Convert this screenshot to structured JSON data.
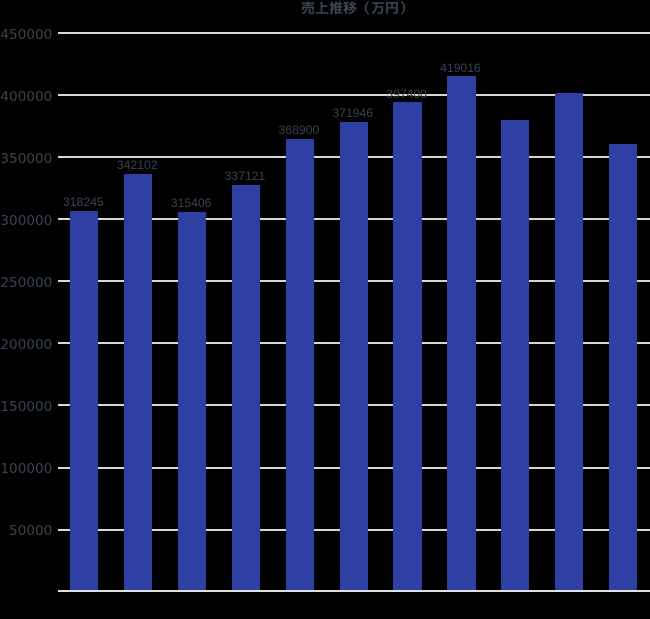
{
  "chart_data": {
    "type": "bar",
    "title": "売上推移（万円）",
    "categories": [
      "",
      "",
      "",
      "",
      "",
      "",
      "",
      "",
      "",
      "",
      ""
    ],
    "values": [
      318245,
      342102,
      315406,
      337121,
      368900,
      371946,
      397400,
      419016,
      380200,
      401400,
      360800
    ],
    "data_labels": [
      "318245",
      "342102",
      "315406",
      "337121",
      "368900",
      "371946",
      "397400",
      "419016",
      null,
      null,
      null
    ],
    "values_rendered": [
      306600,
      336500,
      306100,
      328000,
      365000,
      378500,
      394300,
      415300,
      380200,
      401400,
      360800
    ],
    "xlabel": "",
    "ylabel": "",
    "ylim": [
      0,
      450000
    ],
    "ytick_step": 50000,
    "ytick_labels": [
      "50000",
      "100000",
      "150000",
      "200000",
      "250000",
      "300000",
      "350000",
      "400000",
      "450000"
    ],
    "grid": true,
    "legend": false,
    "bar_color": "#2e40a4"
  },
  "colors": {
    "background": "#000000",
    "text": "#39434f",
    "grid": "#d6d6d6",
    "axis": "#e0e0e0",
    "bar": "#2e40a4"
  }
}
